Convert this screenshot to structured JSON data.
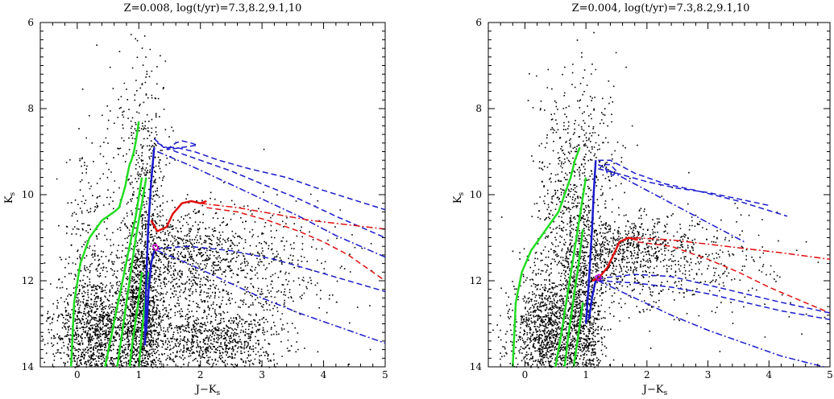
{
  "chart_data": [
    {
      "type": "scatter",
      "title": "Z=0.008, log(t/yr)=7.3,8.2,9.1,10",
      "xlabel": "J−K",
      "xlabel_sub": "s",
      "ylabel": "K",
      "ylabel_sub": "s",
      "xlim": [
        -0.6,
        5.0
      ],
      "ylim": [
        14,
        6
      ],
      "xticks": [
        "0",
        "1",
        "2",
        "3",
        "4",
        "5"
      ],
      "yticks": [
        "6",
        "8",
        "10",
        "12",
        "14"
      ],
      "y_inverted": true,
      "colors": {
        "points": "#000000",
        "green": "#22dd22",
        "blue": "#1a1acc",
        "red": "#e01010",
        "magenta": "#cc00cc"
      },
      "clusters": [
        {
          "cx": 0.3,
          "cy": 13.3,
          "sx": 0.35,
          "sy": 0.7,
          "n": 1300
        },
        {
          "cx": 1.05,
          "cy": 12.8,
          "sx": 0.18,
          "sy": 1.1,
          "n": 1300
        },
        {
          "cx": 1.15,
          "cy": 9.8,
          "sx": 0.15,
          "sy": 1.3,
          "n": 350
        },
        {
          "cx": 1.75,
          "cy": 11.4,
          "sx": 0.4,
          "sy": 0.5,
          "n": 500
        },
        {
          "cx": 2.2,
          "cy": 13.4,
          "sx": 0.55,
          "sy": 0.45,
          "n": 900
        },
        {
          "cx": 2.6,
          "cy": 11.8,
          "sx": 0.9,
          "sy": 0.8,
          "n": 650
        },
        {
          "cx": 0.2,
          "cy": 11.5,
          "sx": 0.25,
          "sy": 1.5,
          "n": 300
        },
        {
          "cx": 0.9,
          "cy": 8.6,
          "sx": 0.25,
          "sy": 1.0,
          "n": 90
        }
      ],
      "seed": 11,
      "series": [
        {
          "color": "#22dd22",
          "dash": "solid",
          "width": 2.5,
          "x": [
            -0.1,
            -0.05,
            0.05,
            0.2,
            0.4,
            0.6,
            0.68,
            0.72,
            0.78,
            0.82,
            0.85,
            0.88,
            0.92,
            0.96,
            1.0
          ],
          "y": [
            14.0,
            12.5,
            11.6,
            11.0,
            10.6,
            10.4,
            10.3,
            10.1,
            9.8,
            9.5,
            9.3,
            9.2,
            9.0,
            8.7,
            8.3
          ]
        },
        {
          "color": "#22dd22",
          "dash": "solid",
          "width": 2.5,
          "x": [
            0.45,
            0.55,
            0.65,
            0.75,
            0.85,
            0.95,
            1.05
          ],
          "y": [
            14.0,
            13.3,
            12.6,
            11.9,
            11.2,
            10.5,
            9.6
          ]
        },
        {
          "color": "#22dd22",
          "dash": "solid",
          "width": 2.5,
          "x": [
            0.65,
            0.75,
            0.85,
            0.95,
            1.05,
            1.12
          ],
          "y": [
            14.0,
            13.0,
            12.0,
            11.0,
            10.2,
            9.6
          ]
        },
        {
          "color": "#22dd22",
          "dash": "solid",
          "width": 2.5,
          "x": [
            0.85,
            0.9,
            0.95,
            1.0,
            1.05
          ],
          "y": [
            14.0,
            13.4,
            12.9,
            12.4,
            11.8
          ]
        },
        {
          "color": "#22dd22",
          "dash": "solid",
          "width": 2.5,
          "x": [
            1.0,
            1.05,
            1.1,
            1.15
          ],
          "y": [
            14.0,
            13.2,
            12.5,
            11.8
          ]
        },
        {
          "color": "#1a1acc",
          "dash": "solid",
          "width": 2.5,
          "x": [
            1.1,
            1.12,
            1.15,
            1.2,
            1.25
          ],
          "y": [
            13.5,
            12.0,
            10.8,
            9.7,
            8.9
          ]
        },
        {
          "color": "#1a1acc",
          "dash": "solid",
          "width": 2.5,
          "x": [
            1.12,
            1.16,
            1.2,
            1.25
          ],
          "y": [
            13.2,
            12.2,
            11.6,
            11.3
          ]
        },
        {
          "color": "#1a1acc",
          "dash": "dashed",
          "width": 1.5,
          "x": [
            1.25,
            1.4,
            1.6,
            1.9,
            2.3,
            2.8,
            3.4,
            4.0,
            5.0
          ],
          "y": [
            8.7,
            8.9,
            8.9,
            9.0,
            9.2,
            9.4,
            9.6,
            9.9,
            10.35
          ]
        },
        {
          "color": "#1a1acc",
          "dash": "dashed",
          "width": 1.5,
          "x": [
            1.3,
            1.6,
            2.0,
            2.5,
            3.0,
            3.6,
            4.2,
            5.0
          ],
          "y": [
            8.8,
            9.0,
            9.2,
            9.45,
            9.75,
            10.1,
            10.5,
            11.0
          ]
        },
        {
          "color": "#1a1acc",
          "dash": "dashdot",
          "width": 1.5,
          "x": [
            1.3,
            1.8,
            2.4,
            3.0,
            3.6,
            4.2,
            5.0
          ],
          "y": [
            9.0,
            9.3,
            9.7,
            10.1,
            10.5,
            10.95,
            11.45
          ]
        },
        {
          "color": "#1a1acc",
          "dash": "dashed",
          "width": 1.5,
          "x": [
            1.45,
            1.5,
            1.6,
            1.7,
            1.85,
            1.95,
            1.7,
            1.5,
            1.45
          ],
          "y": [
            8.95,
            8.9,
            8.8,
            8.75,
            8.8,
            8.85,
            8.9,
            8.95,
            8.95
          ]
        },
        {
          "color": "#e01010",
          "dash": "solid",
          "width": 2.5,
          "x": [
            1.2,
            1.3,
            1.45,
            1.55,
            1.7,
            1.85,
            2.0,
            2.1
          ],
          "y": [
            10.6,
            10.85,
            10.75,
            10.45,
            10.2,
            10.15,
            10.2,
            10.15
          ]
        },
        {
          "color": "#e01010",
          "dash": "dashdot",
          "width": 1.5,
          "x": [
            2.0,
            2.6,
            3.2,
            3.8,
            4.4,
            5.0
          ],
          "y": [
            10.2,
            10.3,
            10.45,
            10.6,
            10.7,
            10.8
          ]
        },
        {
          "color": "#e01010",
          "dash": "dashed",
          "width": 1.5,
          "x": [
            2.1,
            2.6,
            3.1,
            3.6,
            4.0,
            4.4,
            4.8,
            5.0
          ],
          "y": [
            10.3,
            10.4,
            10.6,
            10.85,
            11.1,
            11.4,
            11.8,
            12.0
          ]
        },
        {
          "color": "#1a1acc",
          "dash": "dashed",
          "width": 1.5,
          "x": [
            1.3,
            1.8,
            2.5,
            3.2,
            3.8,
            4.4,
            5.0
          ],
          "y": [
            11.25,
            11.2,
            11.3,
            11.5,
            11.75,
            12.0,
            12.25
          ]
        },
        {
          "color": "#1a1acc",
          "dash": "dashdot",
          "width": 1.5,
          "x": [
            1.3,
            1.8,
            2.4,
            3.0,
            3.6,
            4.2,
            5.0
          ],
          "y": [
            11.3,
            11.6,
            12.0,
            12.4,
            12.75,
            13.05,
            13.45
          ]
        },
        {
          "color": "#cc00cc",
          "dash": "solid",
          "width": 1.5,
          "x": [
            1.22,
            1.28,
            1.32,
            1.28,
            1.22
          ],
          "y": [
            11.2,
            11.15,
            11.25,
            11.3,
            11.2
          ]
        }
      ]
    },
    {
      "type": "scatter",
      "title": "Z=0.004, log(t/yr)=7.3,8.2,9.1,10",
      "xlabel": "J−K",
      "xlabel_sub": "s",
      "ylabel": "K",
      "ylabel_sub": "s",
      "xlim": [
        -0.6,
        5.0
      ],
      "ylim": [
        14,
        6
      ],
      "xticks": [
        "0",
        "1",
        "2",
        "3",
        "4",
        "5"
      ],
      "yticks": [
        "6",
        "8",
        "10",
        "12",
        "14"
      ],
      "y_inverted": true,
      "colors": {
        "points": "#000000",
        "green": "#22dd22",
        "blue": "#1a1acc",
        "red": "#e01010",
        "magenta": "#cc00cc"
      },
      "clusters": [
        {
          "cx": 0.35,
          "cy": 13.2,
          "sx": 0.3,
          "sy": 0.7,
          "n": 1200
        },
        {
          "cx": 0.95,
          "cy": 12.9,
          "sx": 0.18,
          "sy": 0.9,
          "n": 800
        },
        {
          "cx": 0.8,
          "cy": 10.5,
          "sx": 0.3,
          "sy": 1.3,
          "n": 700
        },
        {
          "cx": 1.6,
          "cy": 11.3,
          "sx": 0.45,
          "sy": 0.45,
          "n": 500
        },
        {
          "cx": 2.4,
          "cy": 11.5,
          "sx": 0.7,
          "sy": 0.6,
          "n": 350
        },
        {
          "cx": 0.9,
          "cy": 8.3,
          "sx": 0.35,
          "sy": 0.9,
          "n": 120
        },
        {
          "cx": 3.2,
          "cy": 11.8,
          "sx": 0.9,
          "sy": 0.7,
          "n": 80
        }
      ],
      "seed": 23,
      "series": [
        {
          "color": "#22dd22",
          "dash": "solid",
          "width": 2.5,
          "x": [
            -0.2,
            -0.15,
            -0.05,
            0.1,
            0.3,
            0.45,
            0.55,
            0.6,
            0.65,
            0.7,
            0.75,
            0.82,
            0.9
          ],
          "y": [
            14.0,
            12.5,
            11.8,
            11.3,
            10.9,
            10.6,
            10.4,
            10.2,
            10.0,
            9.8,
            9.6,
            9.2,
            8.9
          ]
        },
        {
          "color": "#22dd22",
          "dash": "solid",
          "width": 2.5,
          "x": [
            0.5,
            0.6,
            0.7,
            0.8,
            0.9,
            1.0
          ],
          "y": [
            14.0,
            13.2,
            12.3,
            11.4,
            10.5,
            9.6
          ]
        },
        {
          "color": "#22dd22",
          "dash": "solid",
          "width": 2.5,
          "x": [
            0.65,
            0.72,
            0.8,
            0.88,
            0.95
          ],
          "y": [
            14.0,
            13.2,
            12.4,
            11.6,
            10.8
          ]
        },
        {
          "color": "#22dd22",
          "dash": "solid",
          "width": 2.5,
          "x": [
            0.8,
            0.85,
            0.9,
            0.95
          ],
          "y": [
            14.0,
            13.5,
            13.0,
            12.5
          ]
        },
        {
          "color": "#1a1acc",
          "dash": "solid",
          "width": 2.5,
          "x": [
            1.0,
            1.05,
            1.1,
            1.13,
            1.16
          ],
          "y": [
            13.0,
            12.0,
            10.8,
            9.9,
            9.2
          ]
        },
        {
          "color": "#1a1acc",
          "dash": "solid",
          "width": 2.5,
          "x": [
            1.05,
            1.1,
            1.15,
            1.2
          ],
          "y": [
            12.9,
            12.4,
            12.05,
            11.9
          ]
        },
        {
          "color": "#1a1acc",
          "dash": "dashed",
          "width": 1.5,
          "x": [
            1.2,
            1.4,
            1.6,
            1.8,
            2.3,
            2.8,
            3.5,
            4.3
          ],
          "y": [
            9.2,
            9.2,
            9.35,
            9.5,
            9.75,
            9.9,
            10.15,
            10.5
          ]
        },
        {
          "color": "#1a1acc",
          "dash": "dashed",
          "width": 1.5,
          "x": [
            1.2,
            1.5,
            2.0,
            2.5,
            3.0,
            3.5,
            4.0
          ],
          "y": [
            9.4,
            9.5,
            9.7,
            9.85,
            9.95,
            10.1,
            10.25
          ]
        },
        {
          "color": "#1a1acc",
          "dash": "dashdot",
          "width": 1.5,
          "x": [
            1.2,
            1.6,
            2.0,
            2.4,
            2.8,
            3.2,
            3.6
          ],
          "y": [
            9.3,
            9.6,
            9.9,
            10.2,
            10.5,
            10.8,
            11.1
          ]
        },
        {
          "color": "#1a1acc",
          "dash": "dashed",
          "width": 1.5,
          "x": [
            1.3,
            1.4,
            1.5,
            1.45,
            1.35,
            1.3
          ],
          "y": [
            9.3,
            9.3,
            9.45,
            9.55,
            9.5,
            9.3
          ]
        },
        {
          "color": "#e01010",
          "dash": "solid",
          "width": 2.5,
          "x": [
            1.1,
            1.2,
            1.35,
            1.45,
            1.55,
            1.7,
            1.85
          ],
          "y": [
            12.0,
            11.95,
            11.7,
            11.4,
            11.1,
            11.0,
            11.05
          ]
        },
        {
          "color": "#e01010",
          "dash": "dashdot",
          "width": 1.5,
          "x": [
            1.8,
            2.4,
            3.0,
            3.6,
            4.2,
            5.0
          ],
          "y": [
            11.0,
            11.05,
            11.15,
            11.25,
            11.35,
            11.5
          ]
        },
        {
          "color": "#e01010",
          "dash": "dashed",
          "width": 1.5,
          "x": [
            1.85,
            2.4,
            3.0,
            3.5,
            4.0,
            4.5,
            5.0
          ],
          "y": [
            11.1,
            11.2,
            11.5,
            11.8,
            12.15,
            12.45,
            12.75
          ]
        },
        {
          "color": "#1a1acc",
          "dash": "dashed",
          "width": 1.5,
          "x": [
            1.2,
            1.8,
            2.4,
            3.0,
            3.6,
            4.2,
            5.0
          ],
          "y": [
            11.95,
            11.85,
            11.9,
            12.1,
            12.3,
            12.5,
            12.75
          ]
        },
        {
          "color": "#1a1acc",
          "dash": "dashed",
          "width": 1.5,
          "x": [
            1.2,
            1.8,
            2.4,
            3.0,
            3.6,
            4.2,
            5.0
          ],
          "y": [
            12.0,
            12.05,
            12.15,
            12.3,
            12.5,
            12.7,
            12.9
          ]
        },
        {
          "color": "#1a1acc",
          "dash": "dashdot",
          "width": 1.5,
          "x": [
            1.2,
            1.8,
            2.4,
            3.0,
            3.6,
            4.2,
            4.9
          ],
          "y": [
            12.0,
            12.4,
            12.8,
            13.15,
            13.45,
            13.75,
            14.0
          ]
        },
        {
          "color": "#cc00cc",
          "dash": "solid",
          "width": 1.5,
          "x": [
            1.15,
            1.22,
            1.25,
            1.2,
            1.15
          ],
          "y": [
            11.9,
            11.85,
            11.95,
            12.0,
            11.9
          ]
        }
      ]
    }
  ]
}
